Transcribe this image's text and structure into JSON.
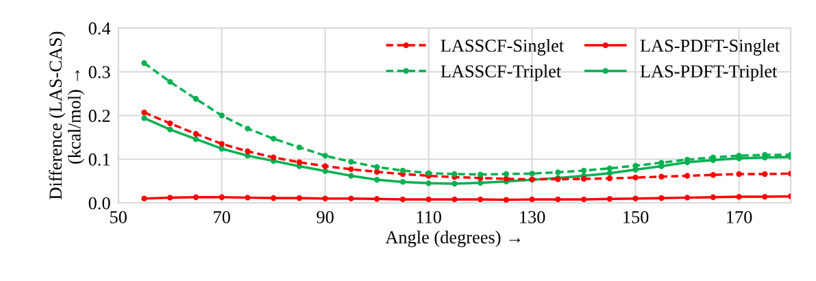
{
  "chart_data": {
    "type": "line",
    "xlabel": "Angle (degrees) →",
    "ylabel": "Difference (LAS-CAS)\n(kcal/mol) →",
    "x": [
      55,
      60,
      65,
      70,
      75,
      80,
      85,
      90,
      95,
      100,
      105,
      110,
      115,
      120,
      125,
      130,
      135,
      140,
      145,
      150,
      155,
      160,
      165,
      170,
      175,
      180
    ],
    "series": [
      {
        "name": "LASSCF-Singlet",
        "color": "#ff0000",
        "line_style": "dashed",
        "values": [
          0.207,
          0.182,
          0.158,
          0.135,
          0.118,
          0.104,
          0.093,
          0.084,
          0.077,
          0.071,
          0.066,
          0.062,
          0.059,
          0.057,
          0.055,
          0.054,
          0.054,
          0.055,
          0.056,
          0.058,
          0.06,
          0.062,
          0.064,
          0.066,
          0.066,
          0.067
        ]
      },
      {
        "name": "LASSCF-Triplet",
        "color": "#00b050",
        "line_style": "dashed",
        "values": [
          0.32,
          0.277,
          0.238,
          0.2,
          0.17,
          0.147,
          0.127,
          0.108,
          0.094,
          0.082,
          0.074,
          0.068,
          0.066,
          0.065,
          0.066,
          0.067,
          0.07,
          0.074,
          0.079,
          0.085,
          0.092,
          0.099,
          0.104,
          0.108,
          0.11,
          0.11
        ]
      },
      {
        "name": "LAS-PDFT-Singlet",
        "color": "#ff0000",
        "line_style": "solid",
        "values": [
          0.01,
          0.012,
          0.013,
          0.013,
          0.012,
          0.011,
          0.011,
          0.01,
          0.01,
          0.009,
          0.008,
          0.008,
          0.008,
          0.008,
          0.007,
          0.008,
          0.008,
          0.008,
          0.009,
          0.01,
          0.011,
          0.012,
          0.013,
          0.014,
          0.014,
          0.015
        ]
      },
      {
        "name": "LAS-PDFT-Triplet",
        "color": "#00b050",
        "line_style": "solid",
        "values": [
          0.194,
          0.168,
          0.146,
          0.124,
          0.108,
          0.096,
          0.084,
          0.073,
          0.062,
          0.053,
          0.048,
          0.045,
          0.044,
          0.046,
          0.049,
          0.053,
          0.057,
          0.062,
          0.068,
          0.076,
          0.084,
          0.093,
          0.098,
          0.102,
          0.104,
          0.105
        ]
      }
    ],
    "xlim": [
      50,
      180
    ],
    "xticks": [
      50,
      70,
      90,
      110,
      130,
      150,
      170
    ],
    "ylim": [
      0,
      0.4
    ],
    "yticks": [
      {
        "value": 0,
        "label": "0.0"
      },
      0.1,
      0.2,
      0.3,
      0.4
    ],
    "grid": true,
    "legend": "top right",
    "marker": "circle"
  }
}
